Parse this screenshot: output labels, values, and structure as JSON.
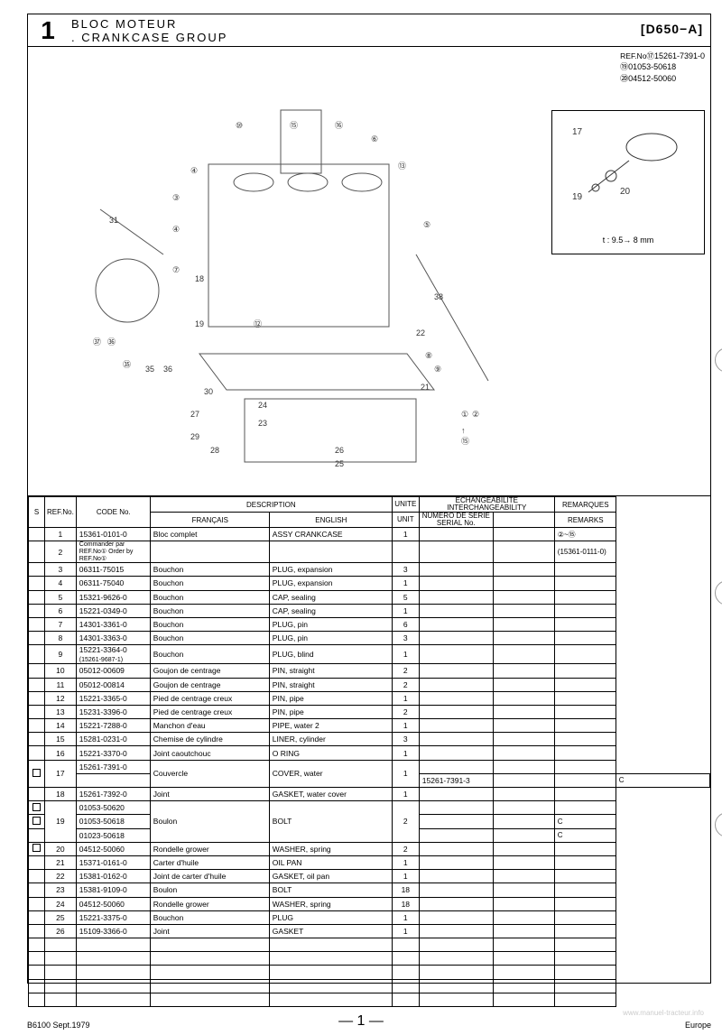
{
  "header": {
    "section_num": "1",
    "title_fr": "BLOC MOTEUR",
    "title_en": ". CRANKCASE GROUP",
    "model": "[D650−A]"
  },
  "ref_box": {
    "label": "REF.No⑰",
    "l1": "15261-7391-0",
    "l2": "⑲01053-50618",
    "l3": "⑳04512-50060"
  },
  "detail": {
    "callouts": [
      "17",
      "19",
      "20"
    ],
    "note": "t : 9.5→ 8 mm"
  },
  "table": {
    "headers": {
      "s": "S",
      "ref": "REF.No.",
      "code": "CODE No.",
      "desc": "DESCRIPTION",
      "fr": "FRANÇAIS",
      "en": "ENGLISH",
      "unit_top": "UNITE",
      "unit_bot": "UNIT",
      "ech_top": "ECHANGEABILITE",
      "ech_bot": "INTERCHANGEABILITY",
      "ser_top": "NUMERO DE SERIE",
      "ser_bot": "SERIAL No.",
      "rem_top": "REMARQUES",
      "rem_bot": "REMARKS"
    },
    "rows": [
      {
        "s": "",
        "ref": "1",
        "code": "15361-0101-0",
        "fr": "Bloc complet",
        "en": "ASSY CRANKCASE",
        "unit": "1",
        "rem": "②~⑮"
      },
      {
        "s": "",
        "ref": "2",
        "code": "Commander par REF.No①\nOrder by REF.No①",
        "fr": "",
        "en": "",
        "unit": "",
        "rem": "(15361-0111-0)",
        "sub": true
      },
      {
        "s": "",
        "ref": "3",
        "code": "06311-75015",
        "fr": "Bouchon",
        "en": "PLUG, expansion",
        "unit": "3",
        "rem": ""
      },
      {
        "s": "",
        "ref": "4",
        "code": "06311-75040",
        "fr": "Bouchon",
        "en": "PLUG, expansion",
        "unit": "1",
        "rem": ""
      },
      {
        "s": "",
        "ref": "5",
        "code": "15321-9626-0",
        "fr": "Bouchon",
        "en": "CAP, sealing",
        "unit": "5",
        "rem": ""
      },
      {
        "s": "",
        "ref": "6",
        "code": "15221-0349-0",
        "fr": "Bouchon",
        "en": "CAP, sealing",
        "unit": "1",
        "rem": ""
      },
      {
        "s": "",
        "ref": "7",
        "code": "14301-3361-0",
        "fr": "Bouchon",
        "en": "PLUG, pin",
        "unit": "6",
        "rem": ""
      },
      {
        "s": "",
        "ref": "8",
        "code": "14301-3363-0",
        "fr": "Bouchon",
        "en": "PLUG, pin",
        "unit": "3",
        "rem": ""
      },
      {
        "s": "",
        "ref": "9",
        "code": "15221-3364-0",
        "code2": "(15261-9687-1)",
        "fr": "Bouchon",
        "en": "PLUG, blind",
        "unit": "1",
        "rem": ""
      },
      {
        "s": "",
        "ref": "10",
        "code": "05012-00609",
        "fr": "Goujon de centrage",
        "en": "PIN, straight",
        "unit": "2",
        "rem": ""
      },
      {
        "s": "",
        "ref": "11",
        "code": "05012-00814",
        "fr": "Goujon de centrage",
        "en": "PIN, straight",
        "unit": "2",
        "rem": ""
      },
      {
        "s": "",
        "ref": "12",
        "code": "15221-3365-0",
        "fr": "Pied de centrage creux",
        "en": "PIN, pipe",
        "unit": "1",
        "rem": ""
      },
      {
        "s": "",
        "ref": "13",
        "code": "15231-3396-0",
        "fr": "Pied de centrage creux",
        "en": "PIN, pipe",
        "unit": "2",
        "rem": ""
      },
      {
        "s": "",
        "ref": "14",
        "code": "15221-7288-0",
        "fr": "Manchon d'eau",
        "en": "PIPE, water 2",
        "unit": "1",
        "rem": ""
      },
      {
        "s": "",
        "ref": "15",
        "code": "15281-0231-0",
        "fr": "Chemise de cylindre",
        "en": "LINER, cylinder",
        "unit": "3",
        "rem": ""
      },
      {
        "s": "",
        "ref": "16",
        "code": "15221-3370-0",
        "fr": "Joint caoutchouc",
        "en": "O RING",
        "unit": "1",
        "rem": ""
      },
      {
        "s": "□",
        "ref": "17",
        "code": "15261-7391-0",
        "fr": "Couvercle",
        "en": "COVER, water",
        "unit": "1",
        "rem": "",
        "rowspan_fr": 2,
        "rowspan_en": 2,
        "rowspan_unit": 2,
        "rowspan_ref": 2,
        "rowspan_s": 2
      },
      {
        "s": "",
        "ref": "",
        "code": "15261-7391-3",
        "fr": "",
        "en": "",
        "unit": "",
        "rem": "C",
        "merged": true
      },
      {
        "s": "",
        "ref": "18",
        "code": "15261-7392-0",
        "fr": "Joint",
        "en": "GASKET, water cover",
        "unit": "1",
        "rem": ""
      },
      {
        "s": "□",
        "ref": "",
        "code": "01053-50620",
        "fr": "",
        "en": "",
        "unit": "",
        "rem": "",
        "rowspan_ref": 3,
        "rowspan_fr": 3,
        "rowspan_en": 3,
        "rowspan_unit": 3,
        "ref_text": "19",
        "fr_text": "Boulon",
        "en_text": "BOLT",
        "unit_text": "2"
      },
      {
        "s": "□",
        "ref": "",
        "code": "01053-50618",
        "fr": "",
        "en": "",
        "unit": "",
        "rem": "C",
        "merged_mid": true
      },
      {
        "s": "",
        "ref": "",
        "code": "01023-50618",
        "fr": "",
        "en": "",
        "unit": "",
        "rem": "C",
        "merged_last": true
      },
      {
        "s": "□",
        "ref": "20",
        "code": "04512-50060",
        "fr": "Rondelle grower",
        "en": "WASHER, spring",
        "unit": "2",
        "rem": ""
      },
      {
        "s": "",
        "ref": "21",
        "code": "15371-0161-0",
        "fr": "Carter d'huile",
        "en": "OIL PAN",
        "unit": "1",
        "rem": ""
      },
      {
        "s": "",
        "ref": "22",
        "code": "15381-0162-0",
        "fr": "Joint de carter d'huile",
        "en": "GASKET, oil pan",
        "unit": "1",
        "rem": ""
      },
      {
        "s": "",
        "ref": "23",
        "code": "15381-9109-0",
        "fr": "Boulon",
        "en": "BOLT",
        "unit": "18",
        "rem": ""
      },
      {
        "s": "",
        "ref": "24",
        "code": "04512-50060",
        "fr": "Rondelle grower",
        "en": "WASHER, spring",
        "unit": "18",
        "rem": ""
      },
      {
        "s": "",
        "ref": "25",
        "code": "15221-3375-0",
        "fr": "Bouchon",
        "en": "PLUG",
        "unit": "1",
        "rem": ""
      },
      {
        "s": "",
        "ref": "26",
        "code": "15109-3366-0",
        "fr": "Joint",
        "en": "GASKET",
        "unit": "1",
        "rem": ""
      }
    ]
  },
  "footer": {
    "left": "B6100 Sept.1979",
    "page": "— 1 —",
    "right": "Europe"
  },
  "watermark": "www.manuel-tracteur.info"
}
